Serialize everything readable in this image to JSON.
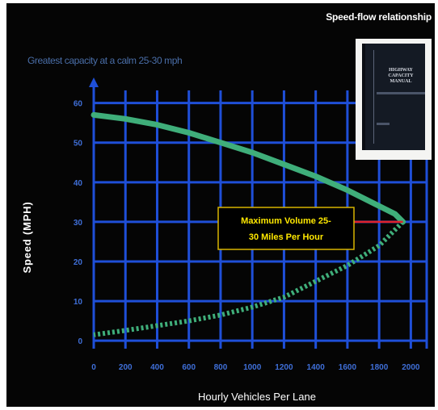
{
  "slide_title": "Speed-flow relationship",
  "subtitle": "Greatest capacity at a calm 25-30 mph",
  "book": {
    "title": "HIGHWAY\nCAPACITY\nMANUAL"
  },
  "colors": {
    "background": "#050505",
    "grid": "#1f4fd8",
    "curve_upper": "#3fae7a",
    "curve_lower": "#3fae7a",
    "callout_text": "#ffe800",
    "callout_border": "#d8b400",
    "marker": "#e0202a"
  },
  "chart_data": {
    "type": "line",
    "title": "Speed-flow relationship",
    "subtitle": "Greatest capacity at a calm 25-30 mph",
    "xlabel": "Hourly Vehicles Per Lane",
    "ylabel": "Speed (MPH)",
    "xlim": [
      0,
      2100
    ],
    "ylim": [
      -2,
      64
    ],
    "x_ticks": [
      0,
      200,
      400,
      600,
      800,
      1000,
      1200,
      1400,
      1600,
      1800,
      2000
    ],
    "y_ticks": [
      0,
      10,
      20,
      30,
      40,
      50,
      60
    ],
    "grid": true,
    "series": [
      {
        "style": "solid",
        "points": [
          [
            0,
            57
          ],
          [
            200,
            56
          ],
          [
            400,
            54.5
          ],
          [
            600,
            52.5
          ],
          [
            800,
            50
          ],
          [
            1000,
            47.5
          ],
          [
            1200,
            44.5
          ],
          [
            1400,
            41.5
          ],
          [
            1600,
            38
          ],
          [
            1800,
            34
          ],
          [
            1900,
            32
          ],
          [
            1950,
            30
          ]
        ]
      },
      {
        "style": "dotted",
        "points": [
          [
            1950,
            30
          ],
          [
            1800,
            24
          ],
          [
            1600,
            19
          ],
          [
            1400,
            15
          ],
          [
            1200,
            11
          ],
          [
            1000,
            8.5
          ],
          [
            800,
            6.5
          ],
          [
            600,
            5
          ],
          [
            400,
            3.8
          ],
          [
            200,
            2.6
          ],
          [
            0,
            1.5
          ]
        ]
      }
    ],
    "annotation": {
      "text_lines": [
        "Maximum Volume 25-",
        "30 Miles Per Hour"
      ],
      "points_to": [
        1950,
        30
      ]
    }
  }
}
